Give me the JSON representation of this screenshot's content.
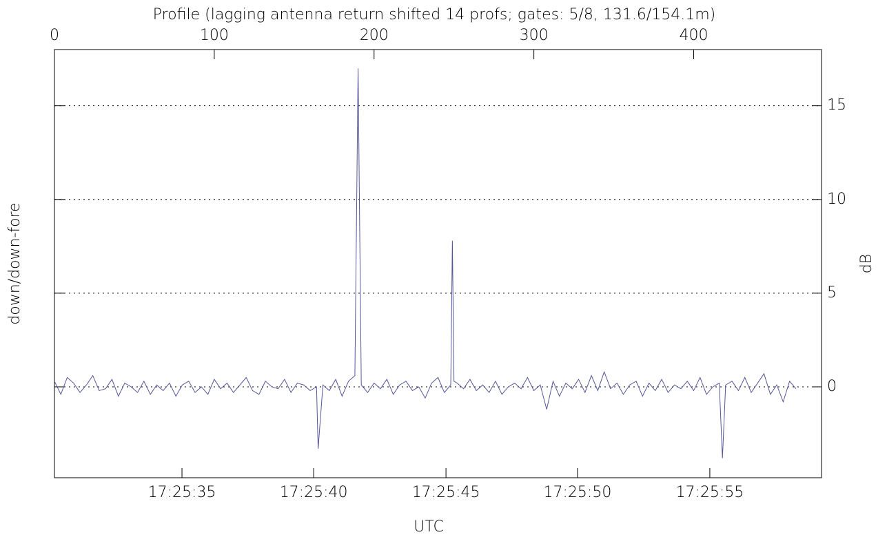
{
  "chart_data": {
    "type": "line",
    "title": "Profile (lagging antenna return shifted 14 profs; gates: 5/8, 131.6/154.1m)",
    "x_label": "UTC",
    "y_label": "down/down-fore",
    "y2_label": "dB",
    "xlim": [
      0,
      480
    ],
    "xticks": [
      0,
      100,
      200,
      300,
      400
    ],
    "x2ticks": [
      {
        "value": 79.8,
        "label": "17:25:35"
      },
      {
        "value": 162.2,
        "label": "17:25:40"
      },
      {
        "value": 245.0,
        "label": "17:25:45"
      },
      {
        "value": 327.3,
        "label": "17:25:50"
      },
      {
        "value": 410.1,
        "label": "17:25:55"
      }
    ],
    "ylim": [
      -4.85,
      18
    ],
    "yticks": [
      0,
      5,
      10,
      15
    ],
    "grid": true,
    "x": [
      0,
      4,
      8,
      12,
      16,
      20,
      24,
      28,
      32,
      36,
      40,
      44,
      48,
      52,
      56,
      60,
      64,
      68,
      72,
      76,
      80,
      84,
      88,
      92,
      96,
      100,
      104,
      108,
      112,
      116,
      120,
      124,
      128,
      132,
      136,
      140,
      144,
      148,
      152,
      156,
      160,
      164,
      165,
      168,
      172,
      176,
      180,
      184,
      188,
      190,
      192,
      196,
      200,
      204,
      208,
      212,
      216,
      220,
      224,
      228,
      232,
      236,
      240,
      244,
      248,
      249,
      250,
      252,
      256,
      260,
      264,
      268,
      272,
      276,
      280,
      284,
      288,
      292,
      296,
      300,
      304,
      308,
      312,
      316,
      320,
      324,
      328,
      332,
      336,
      340,
      344,
      348,
      352,
      356,
      360,
      364,
      368,
      372,
      376,
      380,
      384,
      388,
      392,
      396,
      400,
      404,
      408,
      412,
      416,
      418,
      420,
      424,
      428,
      432,
      436,
      440,
      444,
      448,
      452,
      456,
      460,
      464
    ],
    "series": [
      {
        "name": "down/down-fore",
        "color": "#55559a",
        "values": [
          0.3,
          -0.4,
          0.5,
          0.2,
          -0.3,
          0.1,
          0.6,
          -0.2,
          -0.1,
          0.4,
          -0.5,
          0.2,
          0.0,
          -0.3,
          0.3,
          -0.4,
          0.1,
          -0.2,
          0.2,
          -0.5,
          0.1,
          0.3,
          -0.3,
          0.0,
          -0.4,
          0.4,
          -0.1,
          0.2,
          -0.3,
          0.1,
          0.5,
          -0.2,
          -0.4,
          0.3,
          0.0,
          -0.1,
          0.4,
          -0.3,
          0.2,
          0.1,
          -0.2,
          0.0,
          -3.3,
          0.1,
          -0.2,
          0.4,
          -0.5,
          0.3,
          0.6,
          17.0,
          0.1,
          -0.3,
          0.2,
          -0.1,
          0.4,
          -0.4,
          0.1,
          0.3,
          -0.2,
          0.0,
          -0.6,
          0.2,
          0.5,
          -0.3,
          0.1,
          7.8,
          0.3,
          0.2,
          -0.1,
          0.4,
          -0.2,
          0.1,
          -0.3,
          0.3,
          -0.4,
          0.0,
          0.2,
          -0.1,
          0.5,
          -0.2,
          0.1,
          -1.2,
          0.3,
          -0.5,
          0.2,
          -0.1,
          0.4,
          -0.3,
          0.6,
          -0.2,
          0.8,
          -0.1,
          0.2,
          -0.4,
          0.1,
          0.3,
          -0.5,
          0.2,
          -0.2,
          0.4,
          -0.3,
          0.1,
          -0.1,
          0.3,
          -0.2,
          0.5,
          -0.4,
          0.0,
          0.2,
          -3.8,
          0.1,
          0.3,
          -0.2,
          0.5,
          -0.3,
          0.2,
          0.7,
          -0.4,
          0.1,
          -0.8,
          0.3,
          -0.1
        ]
      }
    ]
  }
}
